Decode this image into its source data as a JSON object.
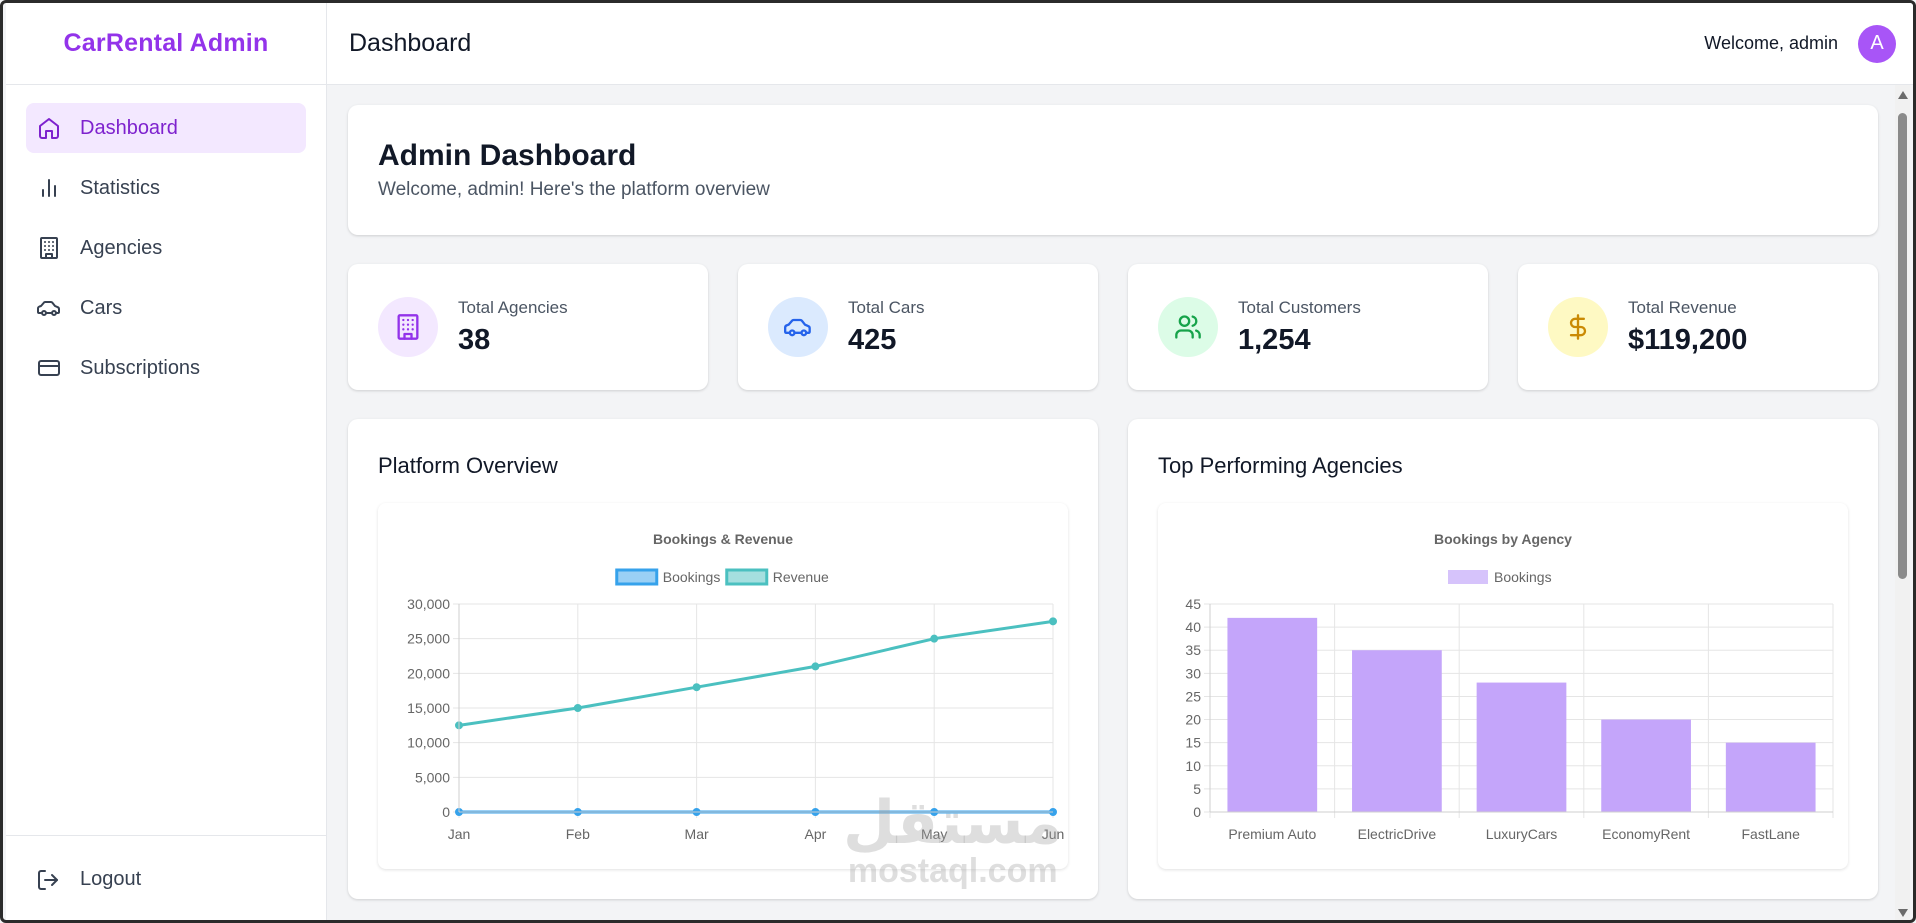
{
  "brand": "CarRental Admin",
  "sidebar": {
    "items": [
      {
        "label": "Dashboard",
        "icon": "home-icon",
        "active": true
      },
      {
        "label": "Statistics",
        "icon": "bar-chart-icon"
      },
      {
        "label": "Agencies",
        "icon": "building-icon"
      },
      {
        "label": "Cars",
        "icon": "car-icon"
      },
      {
        "label": "Subscriptions",
        "icon": "credit-card-icon"
      }
    ],
    "logout": "Logout"
  },
  "header": {
    "title": "Dashboard",
    "welcome": "Welcome, admin",
    "avatar_letter": "A"
  },
  "hero": {
    "title": "Admin Dashboard",
    "subtitle": "Welcome, admin! Here's the platform overview"
  },
  "stats": [
    {
      "label": "Total Agencies",
      "value": "38",
      "icon": "building-icon",
      "bg": "#f3e8ff",
      "color": "#9333ea"
    },
    {
      "label": "Total Cars",
      "value": "425",
      "icon": "car-icon",
      "bg": "#dbeafe",
      "color": "#2563eb"
    },
    {
      "label": "Total Customers",
      "value": "1,254",
      "icon": "users-icon",
      "bg": "#dcfce7",
      "color": "#16a34a"
    },
    {
      "label": "Total Revenue",
      "value": "$119,200",
      "icon": "dollar-icon",
      "bg": "#fef9c3",
      "color": "#ca8a04"
    }
  ],
  "charts": {
    "overview_heading": "Platform Overview",
    "agencies_heading": "Top Performing Agencies"
  },
  "chart_data": [
    {
      "type": "line",
      "title": "Bookings & Revenue",
      "categories": [
        "Jan",
        "Feb",
        "Mar",
        "Apr",
        "May",
        "Jun"
      ],
      "series": [
        {
          "name": "Bookings",
          "values": [
            0,
            0,
            0,
            0,
            0,
            0
          ],
          "color": "#36a2eb"
        },
        {
          "name": "Revenue",
          "values": [
            12500,
            15000,
            18000,
            21000,
            25000,
            27500
          ],
          "color": "#4bc0c0"
        }
      ],
      "ylim": [
        0,
        30000
      ],
      "yticks": [
        "0",
        "5,000",
        "10,000",
        "15,000",
        "20,000",
        "25,000",
        "30,000"
      ],
      "legend": "top",
      "grid": true
    },
    {
      "type": "bar",
      "title": "Bookings by Agency",
      "categories": [
        "Premium Auto",
        "ElectricDrive",
        "LuxuryCars",
        "EconomyRent",
        "FastLane"
      ],
      "series": [
        {
          "name": "Bookings",
          "values": [
            42,
            35,
            28,
            20,
            15
          ],
          "color": "#c4a5fa"
        }
      ],
      "ylim": [
        0,
        45
      ],
      "yticks": [
        "0",
        "5",
        "10",
        "15",
        "20",
        "25",
        "30",
        "35",
        "40",
        "45"
      ],
      "legend": "top",
      "grid": true
    }
  ],
  "watermark": {
    "arabic": "مستقل",
    "latin": "mostaql.com"
  }
}
